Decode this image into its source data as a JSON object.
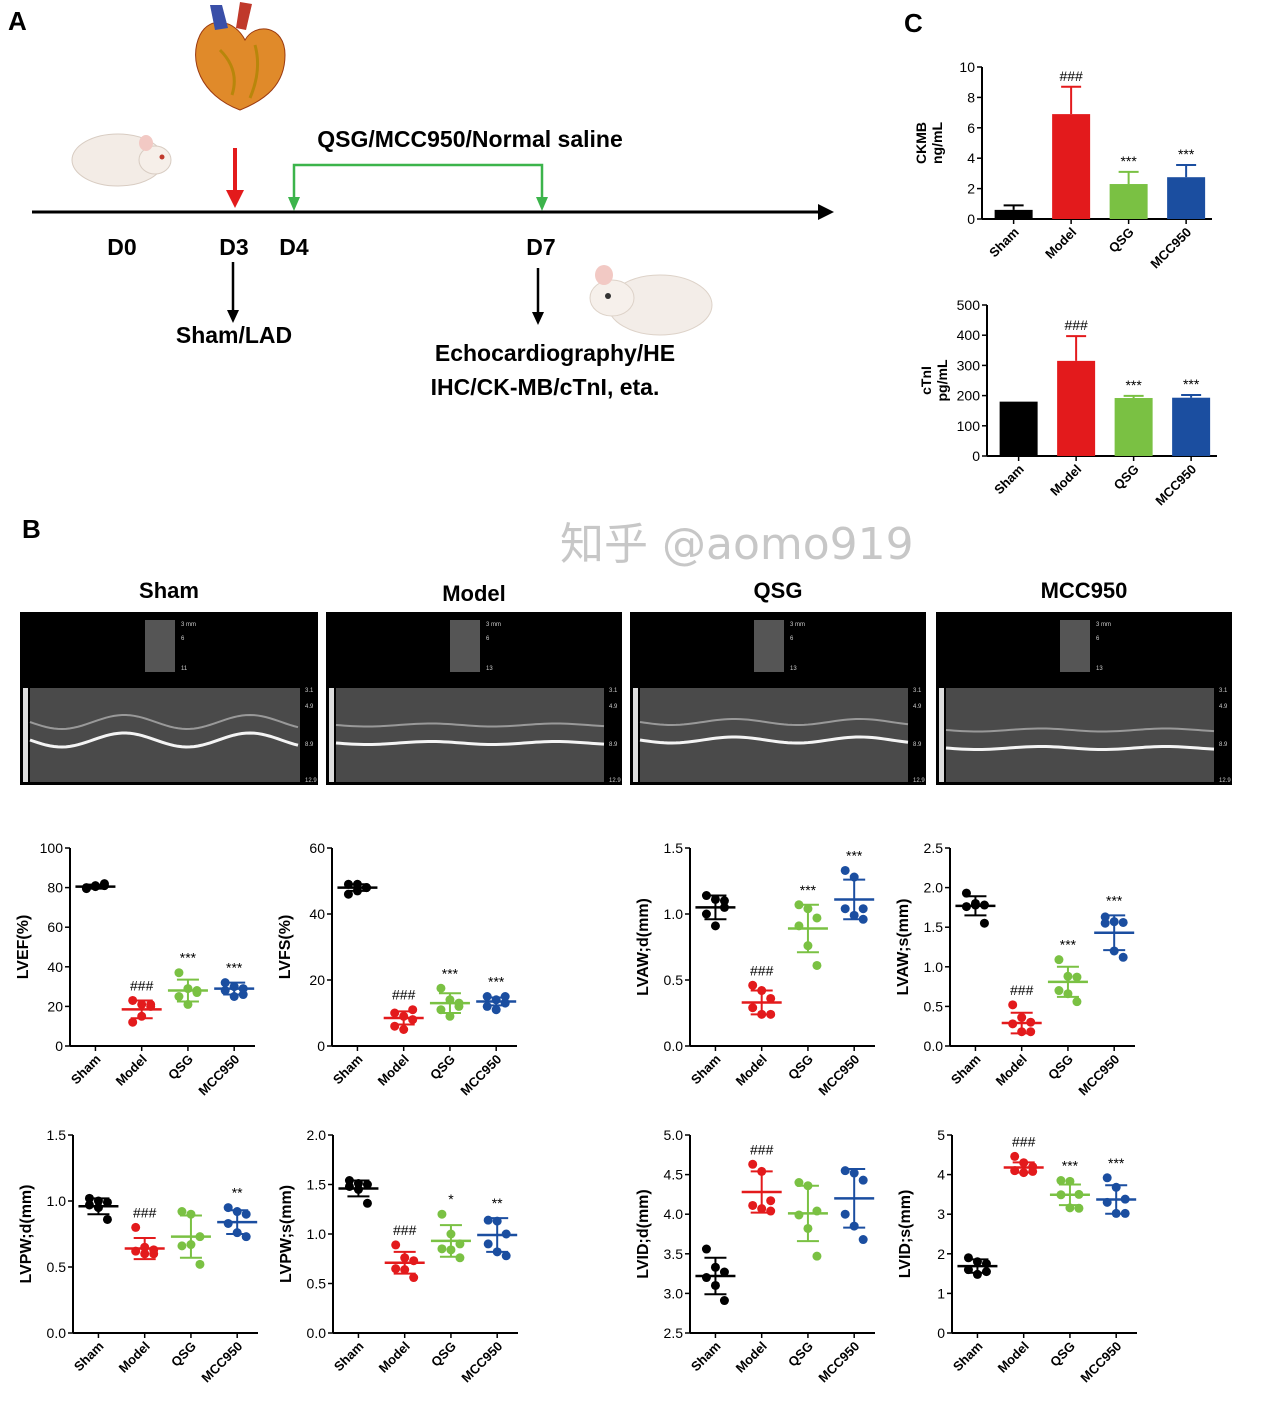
{
  "panel_labels": {
    "a": "A",
    "b": "B",
    "c": "C"
  },
  "timeline": {
    "treatment": "QSG/MCC950/Normal saline",
    "days": [
      "D0",
      "D3",
      "D4",
      "D7"
    ],
    "surgery": "Sham/LAD",
    "assays_line1": "Echocardiography/HE",
    "assays_line2": "IHC/CK-MB/cTnI, eta."
  },
  "colors": {
    "Sham": "#000000",
    "Model": "#e31a1c",
    "QSG": "#7ac143",
    "MCC950": "#1b4ea0"
  },
  "echo": {
    "groups": [
      "Sham",
      "Model",
      "QSG",
      "MCC950"
    ],
    "thumb_scales": [
      [
        "3 mm",
        "6",
        "11"
      ],
      [
        "3 mm",
        "6",
        "13"
      ],
      [
        "3 mm",
        "6",
        "13"
      ],
      [
        "3 mm",
        "6",
        "13"
      ]
    ],
    "depth_scale": [
      "3.1",
      "4.9",
      "8.9",
      "12.9"
    ]
  },
  "watermark": "知乎 @aomo919",
  "chart_data": [
    {
      "id": "ckmb",
      "type": "bar",
      "ylabel": [
        "CKMB",
        "ng/mL"
      ],
      "categories": [
        "Sham",
        "Model",
        "QSG",
        "MCC950"
      ],
      "values": [
        0.6,
        6.9,
        2.3,
        2.75
      ],
      "errors": [
        0.3,
        1.8,
        0.8,
        0.8
      ],
      "annotations": [
        "",
        "###",
        "***",
        "***"
      ],
      "ylim": [
        0,
        10
      ],
      "yticks": [
        "0",
        "2",
        "4",
        "6",
        "8",
        "10"
      ]
    },
    {
      "id": "ctni",
      "type": "bar",
      "ylabel": [
        "cTnI",
        "pg/mL"
      ],
      "categories": [
        "Sham",
        "Model",
        "QSG",
        "MCC950"
      ],
      "values": [
        180,
        315,
        192,
        193
      ],
      "errors": [
        0,
        82,
        7,
        9
      ],
      "annotations": [
        "",
        "###",
        "***",
        "***"
      ],
      "ylim": [
        0,
        500
      ],
      "yticks": [
        "0",
        "100",
        "200",
        "300",
        "400",
        "500"
      ]
    },
    {
      "id": "lvef",
      "type": "scatter",
      "ylabel": "LVEF(%)",
      "categories": [
        "Sham",
        "Model",
        "QSG",
        "MCC950"
      ],
      "ylim": [
        0,
        100
      ],
      "yticks": [
        "0",
        "20",
        "40",
        "60",
        "80",
        "100"
      ],
      "mean": [
        80.5,
        18.5,
        28,
        29
      ],
      "sd": [
        1,
        4.5,
        5.5,
        3
      ],
      "points": [
        [
          80,
          81,
          82,
          79.5,
          80.5,
          81
        ],
        [
          23,
          21,
          21,
          12,
          15,
          20
        ],
        [
          37,
          29,
          27,
          25,
          21,
          28
        ],
        [
          32,
          30,
          29,
          28,
          25,
          26
        ]
      ],
      "annotations": [
        "",
        "###",
        "***",
        "***"
      ]
    },
    {
      "id": "lvfs",
      "type": "scatter",
      "ylabel": "LVFS(%)",
      "categories": [
        "Sham",
        "Model",
        "QSG",
        "MCC950"
      ],
      "ylim": [
        0,
        60
      ],
      "yticks": [
        "0",
        "20",
        "40",
        "60"
      ],
      "mean": [
        48,
        8.5,
        13,
        13.5
      ],
      "sd": [
        1,
        2,
        3,
        1.2
      ],
      "points": [
        [
          49,
          47,
          48,
          46,
          49,
          48
        ],
        [
          10,
          9,
          11,
          6,
          5,
          8
        ],
        [
          17.5,
          14,
          12,
          11,
          9,
          13
        ],
        [
          15,
          14,
          13,
          12,
          11,
          15
        ]
      ],
      "annotations": [
        "",
        "###",
        "***",
        "***"
      ]
    },
    {
      "id": "lvawd",
      "type": "scatter",
      "ylabel": "LVAW;d(mm)",
      "categories": [
        "Sham",
        "Model",
        "QSG",
        "MCC950"
      ],
      "ylim": [
        0,
        1.5
      ],
      "yticks": [
        "0.0",
        "0.5",
        "1.0",
        "1.5"
      ],
      "mean": [
        1.05,
        0.33,
        0.89,
        1.11
      ],
      "sd": [
        0.09,
        0.09,
        0.18,
        0.15
      ],
      "points": [
        [
          1.14,
          1.11,
          1.05,
          1.0,
          0.91,
          1.1
        ],
        [
          0.46,
          0.42,
          0.36,
          0.29,
          0.24,
          0.24
        ],
        [
          1.07,
          1.04,
          0.97,
          0.91,
          0.76,
          0.61
        ],
        [
          1.33,
          1.28,
          1.04,
          1.04,
          0.99,
          0.96
        ]
      ],
      "annotations": [
        "",
        "###",
        "***",
        "***"
      ]
    },
    {
      "id": "lvaws",
      "type": "scatter",
      "ylabel": "LVAW;s(mm)",
      "categories": [
        "Sham",
        "Model",
        "QSG",
        "MCC950"
      ],
      "ylim": [
        0,
        2.5
      ],
      "yticks": [
        "0.0",
        "0.5",
        "1.0",
        "1.5",
        "2.0",
        "2.5"
      ],
      "mean": [
        1.77,
        0.29,
        0.81,
        1.43
      ],
      "sd": [
        0.12,
        0.13,
        0.19,
        0.22
      ],
      "points": [
        [
          1.93,
          1.8,
          1.78,
          1.76,
          1.78,
          1.55
        ],
        [
          0.52,
          0.36,
          0.3,
          0.28,
          0.18,
          0.18
        ],
        [
          1.09,
          0.88,
          0.87,
          0.7,
          0.66,
          0.56
        ],
        [
          1.63,
          1.57,
          1.56,
          1.55,
          1.2,
          1.12
        ]
      ],
      "annotations": [
        "",
        "###",
        "***",
        "***"
      ]
    },
    {
      "id": "lvpwd",
      "type": "scatter",
      "ylabel": "LVPW;d(mm)",
      "categories": [
        "Sham",
        "Model",
        "QSG",
        "MCC950"
      ],
      "ylim": [
        0,
        1.5
      ],
      "yticks": [
        "0.0",
        "0.5",
        "1.0",
        "1.5"
      ],
      "mean": [
        0.96,
        0.64,
        0.73,
        0.84
      ],
      "sd": [
        0.06,
        0.08,
        0.16,
        0.09
      ],
      "points": [
        [
          1.02,
          1.0,
          0.99,
          0.97,
          0.95,
          0.86
        ],
        [
          0.8,
          0.65,
          0.63,
          0.62,
          0.6,
          0.6
        ],
        [
          0.92,
          0.9,
          0.73,
          0.66,
          0.67,
          0.52
        ],
        [
          0.95,
          0.92,
          0.9,
          0.83,
          0.76,
          0.73
        ]
      ],
      "annotations": [
        "",
        "###",
        "",
        "**"
      ]
    },
    {
      "id": "lvpws",
      "type": "scatter",
      "ylabel": "LVPW;s(mm)",
      "categories": [
        "Sham",
        "Model",
        "QSG",
        "MCC950"
      ],
      "ylim": [
        0,
        2
      ],
      "yticks": [
        "0.0",
        "0.5",
        "1.0",
        "1.5",
        "2.0"
      ],
      "mean": [
        1.46,
        0.71,
        0.93,
        0.99
      ],
      "sd": [
        0.08,
        0.11,
        0.16,
        0.17
      ],
      "points": [
        [
          1.54,
          1.51,
          1.5,
          1.48,
          1.45,
          1.31
        ],
        [
          0.89,
          0.76,
          0.73,
          0.65,
          0.64,
          0.56
        ],
        [
          1.2,
          1.0,
          0.9,
          0.85,
          0.84,
          0.76
        ],
        [
          1.14,
          1.13,
          1.0,
          0.9,
          0.82,
          0.78
        ]
      ],
      "annotations": [
        "",
        "###",
        "*",
        "**"
      ]
    },
    {
      "id": "lvidd",
      "type": "scatter",
      "ylabel": "LVID;d(mm)",
      "categories": [
        "Sham",
        "Model",
        "QSG",
        "MCC950"
      ],
      "ylim": [
        2.5,
        5
      ],
      "yticks": [
        "2.5",
        "3.0",
        "3.5",
        "4.0",
        "4.5",
        "5.0"
      ],
      "mean": [
        3.22,
        4.28,
        4.01,
        4.2
      ],
      "sd": [
        0.23,
        0.26,
        0.35,
        0.37
      ],
      "points": [
        [
          3.56,
          3.33,
          3.27,
          3.2,
          3.1,
          2.91
        ],
        [
          4.63,
          4.54,
          4.17,
          4.11,
          4.07,
          4.04
        ],
        [
          4.4,
          4.36,
          4.04,
          3.99,
          3.82,
          3.47
        ],
        [
          4.55,
          4.52,
          4.43,
          4.0,
          3.85,
          3.68
        ]
      ],
      "annotations": [
        "",
        "###",
        "",
        ""
      ]
    },
    {
      "id": "lvids",
      "type": "scatter",
      "ylabel": "LVID;s(mm)",
      "categories": [
        "Sham",
        "Model",
        "QSG",
        "MCC950"
      ],
      "ylim": [
        0,
        5
      ],
      "yticks": [
        "0",
        "1",
        "2",
        "3",
        "4",
        "5"
      ],
      "mean": [
        1.69,
        4.18,
        3.49,
        3.37
      ],
      "sd": [
        0.17,
        0.13,
        0.26,
        0.36
      ],
      "points": [
        [
          1.9,
          1.8,
          1.75,
          1.6,
          1.48,
          1.55
        ],
        [
          4.46,
          4.3,
          4.2,
          4.1,
          4.05,
          4.08
        ],
        [
          3.85,
          3.83,
          3.5,
          3.49,
          3.16,
          3.15
        ],
        [
          3.92,
          3.68,
          3.38,
          3.3,
          3.02,
          3.02
        ]
      ],
      "annotations": [
        "",
        "###",
        "***",
        "***"
      ]
    }
  ]
}
